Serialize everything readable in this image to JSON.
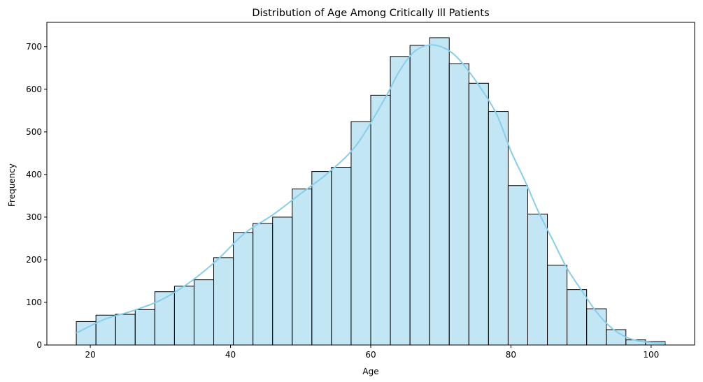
{
  "chart_data": {
    "type": "bar",
    "title": "Distribution of Age Among Critically Ill Patients",
    "xlabel": "Age",
    "ylabel": "Frequency",
    "xlim": [
      13.8,
      106.2
    ],
    "ylim": [
      0,
      757
    ],
    "xticks": [
      20,
      40,
      60,
      80,
      100
    ],
    "yticks": [
      0,
      100,
      200,
      300,
      400,
      500,
      600,
      700
    ],
    "bin_start": 18,
    "bin_width": 2.8,
    "values": [
      55,
      70,
      72,
      83,
      125,
      138,
      153,
      205,
      264,
      285,
      300,
      366,
      407,
      417,
      524,
      586,
      677,
      703,
      721,
      660,
      614,
      548,
      374,
      307,
      187,
      130,
      85,
      36,
      12,
      8
    ],
    "kde": {
      "x": [
        18,
        22,
        26,
        30,
        34,
        38,
        42,
        46,
        50,
        54,
        58,
        62,
        64,
        66,
        68,
        70,
        72,
        74,
        76,
        78,
        80,
        82,
        84,
        86,
        88,
        90,
        92,
        94,
        96,
        98,
        100,
        102
      ],
      "y": [
        28,
        60,
        80,
        105,
        145,
        198,
        262,
        305,
        355,
        405,
        470,
        578,
        640,
        685,
        703,
        700,
        680,
        642,
        595,
        540,
        455,
        385,
        310,
        245,
        180,
        130,
        82,
        45,
        22,
        10,
        6,
        4
      ]
    },
    "colors": {
      "bar": "#87ceeb",
      "kde": "#87ceeb",
      "edge": "#000000"
    },
    "grid": false,
    "legend": "none"
  }
}
